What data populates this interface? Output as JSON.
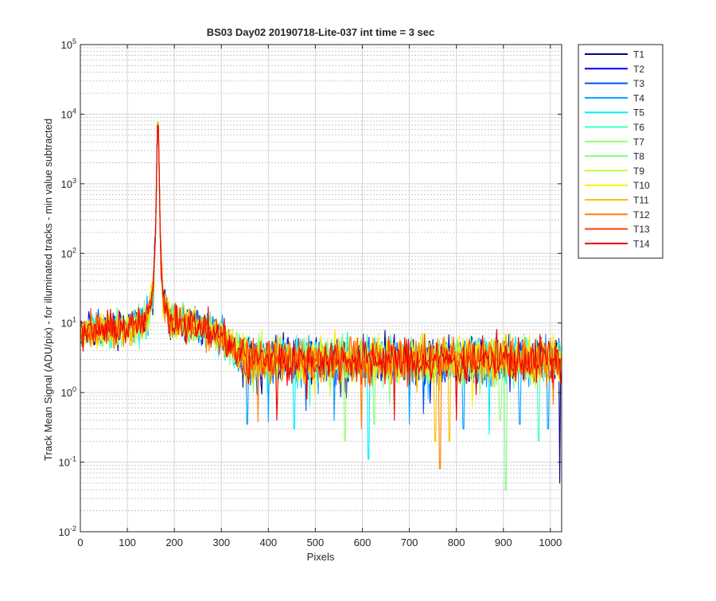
{
  "chart_data": {
    "type": "line",
    "title": "BS03 Day02 20190718-Lite-037 int time = 3 sec",
    "xlabel": "Pixels",
    "ylabel": "Track Mean Signal (ADU/pix) - for illuminated tracks - min value subtracted",
    "xlim": [
      0,
      1024
    ],
    "ylim": [
      0.01,
      100000
    ],
    "yscale": "log",
    "grid": "on (major and minor)",
    "legend_position": "outside-top-right",
    "x_ticks": [
      "0",
      "100",
      "200",
      "300",
      "400",
      "500",
      "600",
      "700",
      "800",
      "900",
      "1000"
    ],
    "y_ticks": [
      {
        "base": "10",
        "exp": "-2"
      },
      {
        "base": "10",
        "exp": "-1"
      },
      {
        "base": "10",
        "exp": "0"
      },
      {
        "base": "10",
        "exp": "1"
      },
      {
        "base": "10",
        "exp": "2"
      },
      {
        "base": "10",
        "exp": "3"
      },
      {
        "base": "10",
        "exp": "4"
      },
      {
        "base": "10",
        "exp": "5"
      }
    ],
    "peak": {
      "x": 165,
      "y": 20000
    },
    "profile_x": [
      0,
      50,
      100,
      140,
      155,
      160,
      163,
      165,
      167,
      170,
      175,
      190,
      250,
      300,
      330,
      360,
      400,
      1024
    ],
    "profile_y": [
      7,
      8,
      8.5,
      11,
      25,
      200,
      2500,
      20000,
      2500,
      200,
      25,
      11,
      9,
      6.5,
      4,
      3,
      3,
      3
    ],
    "noise_scale_dex": 0.12,
    "series": [
      {
        "name": "T1",
        "color": "#00008f"
      },
      {
        "name": "T2",
        "color": "#0000ef"
      },
      {
        "name": "T3",
        "color": "#0050ff"
      },
      {
        "name": "T4",
        "color": "#00a0ff"
      },
      {
        "name": "T5",
        "color": "#00efff"
      },
      {
        "name": "T6",
        "color": "#40ffbf"
      },
      {
        "name": "T7",
        "color": "#8fff70"
      },
      {
        "name": "T8",
        "color": "#80ff80"
      },
      {
        "name": "T9",
        "color": "#bfff40"
      },
      {
        "name": "T10",
        "color": "#ffef00"
      },
      {
        "name": "T11",
        "color": "#ffbf00"
      },
      {
        "name": "T12",
        "color": "#ff8000"
      },
      {
        "name": "T13",
        "color": "#ff4000"
      },
      {
        "name": "T14",
        "color": "#ef0000"
      }
    ],
    "dips": [
      {
        "x": 355,
        "y": 0.35,
        "series": 3
      },
      {
        "x": 378,
        "y": 0.38,
        "series": 11
      },
      {
        "x": 400,
        "y": 0.38,
        "series": 3
      },
      {
        "x": 418,
        "y": 0.4,
        "series": 13
      },
      {
        "x": 455,
        "y": 0.3,
        "series": 4
      },
      {
        "x": 480,
        "y": 0.55,
        "series": 2
      },
      {
        "x": 540,
        "y": 0.4,
        "series": 3
      },
      {
        "x": 563,
        "y": 0.2,
        "series": 6
      },
      {
        "x": 598,
        "y": 0.3,
        "series": 11
      },
      {
        "x": 613,
        "y": 0.11,
        "series": 4
      },
      {
        "x": 625,
        "y": 0.35,
        "series": 7
      },
      {
        "x": 668,
        "y": 0.4,
        "series": 13
      },
      {
        "x": 700,
        "y": 0.35,
        "series": 3
      },
      {
        "x": 730,
        "y": 0.5,
        "series": 2
      },
      {
        "x": 755,
        "y": 0.2,
        "series": 10
      },
      {
        "x": 765,
        "y": 0.08,
        "series": 11
      },
      {
        "x": 785,
        "y": 0.2,
        "series": 10
      },
      {
        "x": 800,
        "y": 0.4,
        "series": 13
      },
      {
        "x": 815,
        "y": 0.3,
        "series": 3
      },
      {
        "x": 870,
        "y": 0.25,
        "series": 4
      },
      {
        "x": 893,
        "y": 0.4,
        "series": 6
      },
      {
        "x": 905,
        "y": 0.04,
        "series": 7
      },
      {
        "x": 935,
        "y": 0.35,
        "series": 3
      },
      {
        "x": 975,
        "y": 0.2,
        "series": 5
      },
      {
        "x": 995,
        "y": 0.3,
        "series": 3
      },
      {
        "x": 1020,
        "y": 0.05,
        "series": 0
      }
    ]
  }
}
